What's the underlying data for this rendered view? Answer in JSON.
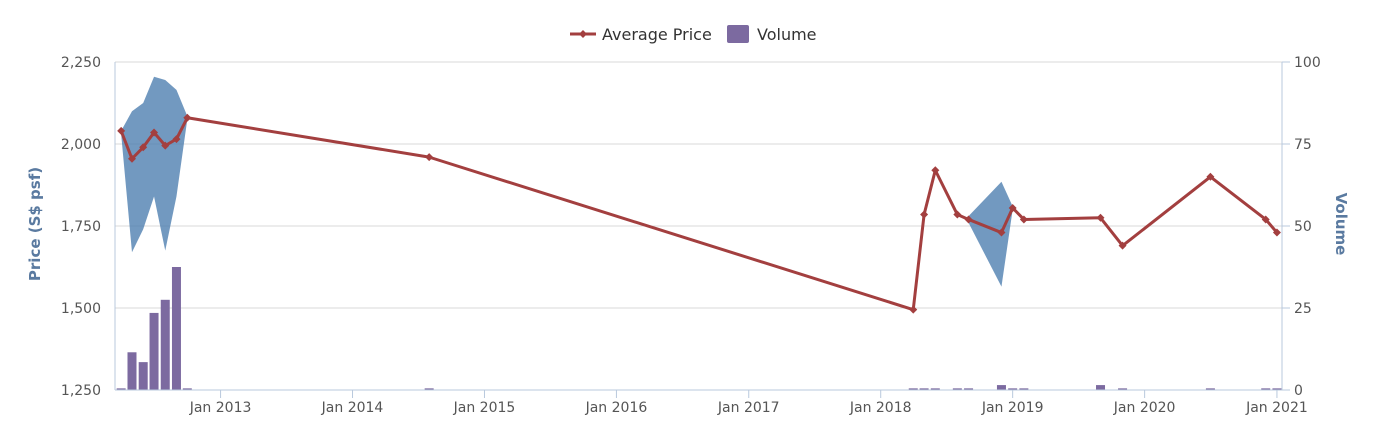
{
  "legend": {
    "price_label": "Average Price",
    "volume_label": "Volume"
  },
  "axes": {
    "y_left_title": "Price (S$ psf)",
    "y_right_title": "Volume"
  },
  "colors": {
    "price_line": "#a33f3f",
    "volume_bar": "#7c6aa0",
    "range_band": "#4f7fb0",
    "gridline": "#d8d8d8",
    "axis_line": "#b9c9dd"
  },
  "chart_data": {
    "type": "line",
    "x_axis": {
      "type": "date",
      "range": [
        "2012-03-15",
        "2021-01-15"
      ],
      "tick_labels": [
        "Jan 2013",
        "Jan 2014",
        "Jan 2015",
        "Jan 2016",
        "Jan 2017",
        "Jan 2018",
        "Jan 2019",
        "Jan 2020",
        "Jan 2021"
      ],
      "tick_dates": [
        "2013-01-01",
        "2014-01-01",
        "2015-01-01",
        "2016-01-01",
        "2017-01-01",
        "2018-01-01",
        "2019-01-01",
        "2020-01-01",
        "2021-01-01"
      ]
    },
    "y_left": {
      "label": "Price (S$ psf)",
      "range": [
        1250,
        2250
      ],
      "ticks": [
        1250,
        1500,
        1750,
        2000,
        2250
      ],
      "tick_labels": [
        "1,250",
        "1,500",
        "1,750",
        "2,000",
        "2,250"
      ]
    },
    "y_right": {
      "label": "Volume",
      "range": [
        0,
        100
      ],
      "ticks": [
        0,
        25,
        50,
        75,
        100
      ],
      "tick_labels": [
        "0",
        "25",
        "50",
        "75",
        "100"
      ]
    },
    "series": [
      {
        "name": "Average Price",
        "type": "line",
        "axis": "left",
        "points": [
          {
            "date": "2012-04-01",
            "value": 2040
          },
          {
            "date": "2012-05-01",
            "value": 1955
          },
          {
            "date": "2012-06-01",
            "value": 1990
          },
          {
            "date": "2012-07-01",
            "value": 2035
          },
          {
            "date": "2012-08-01",
            "value": 1995
          },
          {
            "date": "2012-09-01",
            "value": 2015
          },
          {
            "date": "2012-10-01",
            "value": 2080
          },
          {
            "date": "2014-08-01",
            "value": 1960
          },
          {
            "date": "2018-04-01",
            "value": 1495
          },
          {
            "date": "2018-05-01",
            "value": 1785
          },
          {
            "date": "2018-06-01",
            "value": 1920
          },
          {
            "date": "2018-08-01",
            "value": 1785
          },
          {
            "date": "2018-09-01",
            "value": 1770
          },
          {
            "date": "2018-12-01",
            "value": 1730
          },
          {
            "date": "2019-01-01",
            "value": 1805
          },
          {
            "date": "2019-02-01",
            "value": 1770
          },
          {
            "date": "2019-09-01",
            "value": 1775
          },
          {
            "date": "2019-11-01",
            "value": 1690
          },
          {
            "date": "2020-07-01",
            "value": 1900
          },
          {
            "date": "2020-12-01",
            "value": 1770
          },
          {
            "date": "2021-01-01",
            "value": 1730
          }
        ]
      },
      {
        "name": "Volume",
        "type": "bar",
        "axis": "right",
        "points": [
          {
            "date": "2012-04-01",
            "value": 0.5
          },
          {
            "date": "2012-05-01",
            "value": 11.5
          },
          {
            "date": "2012-06-01",
            "value": 8.5
          },
          {
            "date": "2012-07-01",
            "value": 23.5
          },
          {
            "date": "2012-08-01",
            "value": 27.5
          },
          {
            "date": "2012-09-01",
            "value": 37.5
          },
          {
            "date": "2012-10-01",
            "value": 0.5
          },
          {
            "date": "2014-08-01",
            "value": 0.5
          },
          {
            "date": "2018-04-01",
            "value": 0.5
          },
          {
            "date": "2018-05-01",
            "value": 0.5
          },
          {
            "date": "2018-06-01",
            "value": 0.5
          },
          {
            "date": "2018-08-01",
            "value": 0.5
          },
          {
            "date": "2018-09-01",
            "value": 0.5
          },
          {
            "date": "2018-12-01",
            "value": 1.5
          },
          {
            "date": "2019-01-01",
            "value": 0.5
          },
          {
            "date": "2019-02-01",
            "value": 0.5
          },
          {
            "date": "2019-09-01",
            "value": 1.5
          },
          {
            "date": "2019-11-01",
            "value": 0.5
          },
          {
            "date": "2020-07-01",
            "value": 0.5
          },
          {
            "date": "2020-12-01",
            "value": 0.5
          },
          {
            "date": "2021-01-01",
            "value": 0.5
          }
        ]
      },
      {
        "type": "arearange",
        "axis": "left",
        "points": [
          {
            "date": "2012-04-01",
            "low": 2030,
            "high": 2040
          },
          {
            "date": "2012-05-01",
            "low": 1670,
            "high": 2100
          },
          {
            "date": "2012-06-01",
            "low": 1740,
            "high": 2125
          },
          {
            "date": "2012-07-01",
            "low": 1840,
            "high": 2205
          },
          {
            "date": "2012-08-01",
            "low": 1675,
            "high": 2195
          },
          {
            "date": "2012-09-01",
            "low": 1840,
            "high": 2165
          },
          {
            "date": "2012-10-01",
            "low": 2075,
            "high": 2085
          },
          {
            "date": "2018-09-01",
            "low": 1760,
            "high": 1780
          },
          {
            "date": "2018-12-01",
            "low": 1565,
            "high": 1885
          },
          {
            "date": "2019-01-01",
            "low": 1800,
            "high": 1810
          }
        ]
      }
    ],
    "legend_position": "top-center",
    "grid": true
  }
}
